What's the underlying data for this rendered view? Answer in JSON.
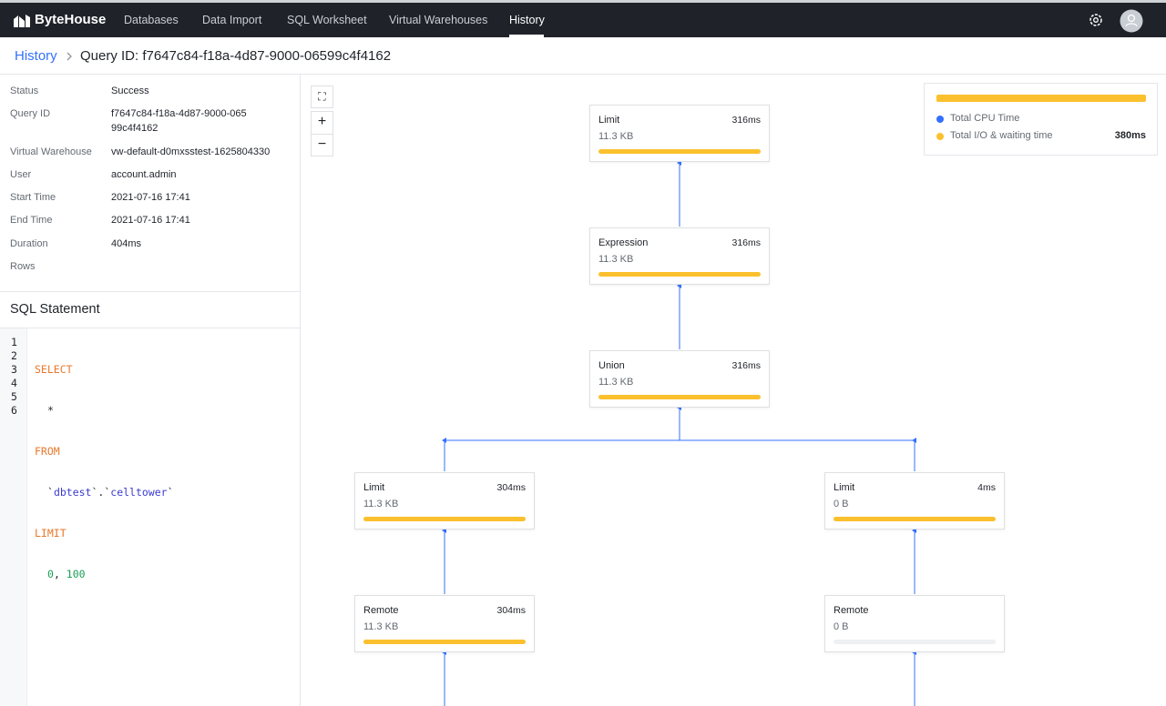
{
  "nav": {
    "brand": "ByteHouse",
    "items": [
      "Databases",
      "Data Import",
      "SQL Worksheet",
      "Virtual Warehouses",
      "History"
    ]
  },
  "breadcrumb": {
    "root": "History",
    "title": "Query ID: f7647c84-f18a-4d87-9000-06599c4f4162"
  },
  "details": [
    {
      "label": "Status",
      "value": "Success"
    },
    {
      "label": "Query ID",
      "value": "f7647c84-f18a-4d87-9000-06599c4f4162"
    },
    {
      "label": "Virtual Warehouse",
      "value": "vw-default-d0mxsstest-1625804330"
    },
    {
      "label": "User",
      "value": "account.admin"
    },
    {
      "label": "Start Time",
      "value": "2021-07-16 17:41"
    },
    {
      "label": "End Time",
      "value": "2021-07-16 17:41"
    },
    {
      "label": "Duration",
      "value": "404ms"
    },
    {
      "label": "Rows"
    }
  ],
  "sql": {
    "heading": "SQL Statement",
    "lines": [
      {
        "number": "1",
        "tokens": [
          "SELECT"
        ]
      },
      {
        "number": "2",
        "tokens": [
          "*"
        ]
      },
      {
        "number": "3",
        "tokens": [
          "FROM"
        ]
      },
      {
        "number": "4",
        "tokens": [
          "`",
          "dbtest",
          "`.`",
          "celltower",
          "`"
        ]
      },
      {
        "number": "5",
        "tokens": [
          "LIMIT"
        ]
      },
      {
        "number": "6",
        "tokens": [
          "0",
          ", ",
          "100"
        ]
      }
    ]
  },
  "legend": {
    "cpu": "Total CPU Time",
    "io": "Total I/O & waiting time",
    "io_value": "380ms"
  },
  "nodes": [
    {
      "name": "Limit",
      "time": "316ms",
      "size": "11.3 KB"
    },
    {
      "name": "Expression",
      "time": "316ms",
      "size": "11.3 KB"
    },
    {
      "name": "Union",
      "time": "316ms",
      "size": "11.3 KB"
    },
    {
      "name": "Limit",
      "time": "304ms",
      "size": "11.3 KB"
    },
    {
      "name": "Limit",
      "time": "4ms",
      "size": "0 B"
    },
    {
      "name": "Remote",
      "time": "304ms",
      "size": "11.3 KB"
    },
    {
      "name": "Remote",
      "size": "0 B"
    }
  ]
}
